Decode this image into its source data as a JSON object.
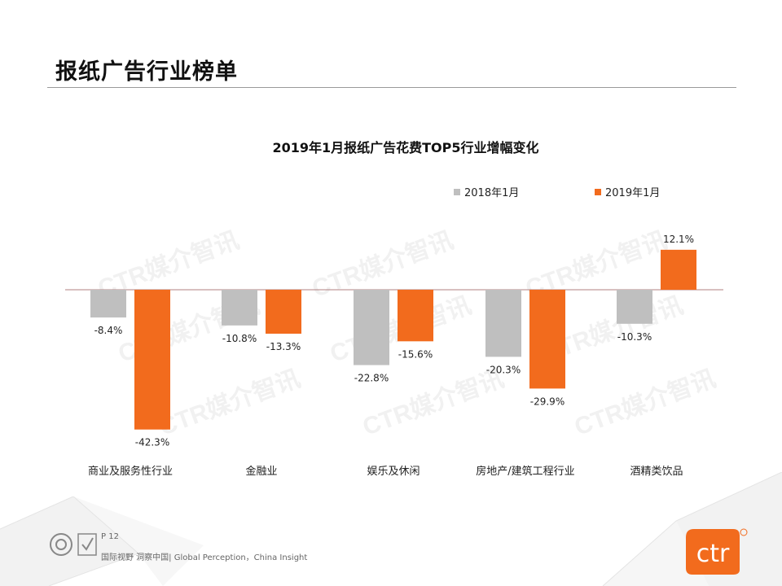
{
  "page": {
    "title": "报纸广告行业榜单",
    "watermark_text": "CTR媒介智讯",
    "footer_page": "P 12",
    "footer_slogan": "国际视野 洞察中国| Global Perception，China Insight",
    "brand_logo_text": "ctr",
    "brand_color": "#f26b1d"
  },
  "chart_data": {
    "type": "bar",
    "title": "2019年1月报纸广告花费TOP5行业增幅变化",
    "categories": [
      "商业及服务性行业",
      "金融业",
      "娱乐及休闲",
      "房地产/建筑工程行业",
      "酒精类饮品"
    ],
    "series": [
      {
        "name": "2018年1月",
        "values": [
          -8.4,
          -10.8,
          -22.8,
          -20.3,
          -10.3
        ],
        "labels": [
          "-8.4%",
          "-10.8%",
          "-22.8%",
          "-20.3%",
          "-10.3%"
        ],
        "color": "#bfbfbf"
      },
      {
        "name": "2019年1月",
        "values": [
          -42.3,
          -13.3,
          -15.6,
          -29.9,
          12.1
        ],
        "labels": [
          "-42.3%",
          "-13.3%",
          "-15.6%",
          "-29.9%",
          "12.1%"
        ],
        "color": "#f26b1d"
      }
    ],
    "unit": "%",
    "ylim": [
      -45,
      15
    ],
    "legend_position": "top-right",
    "grid": false
  }
}
